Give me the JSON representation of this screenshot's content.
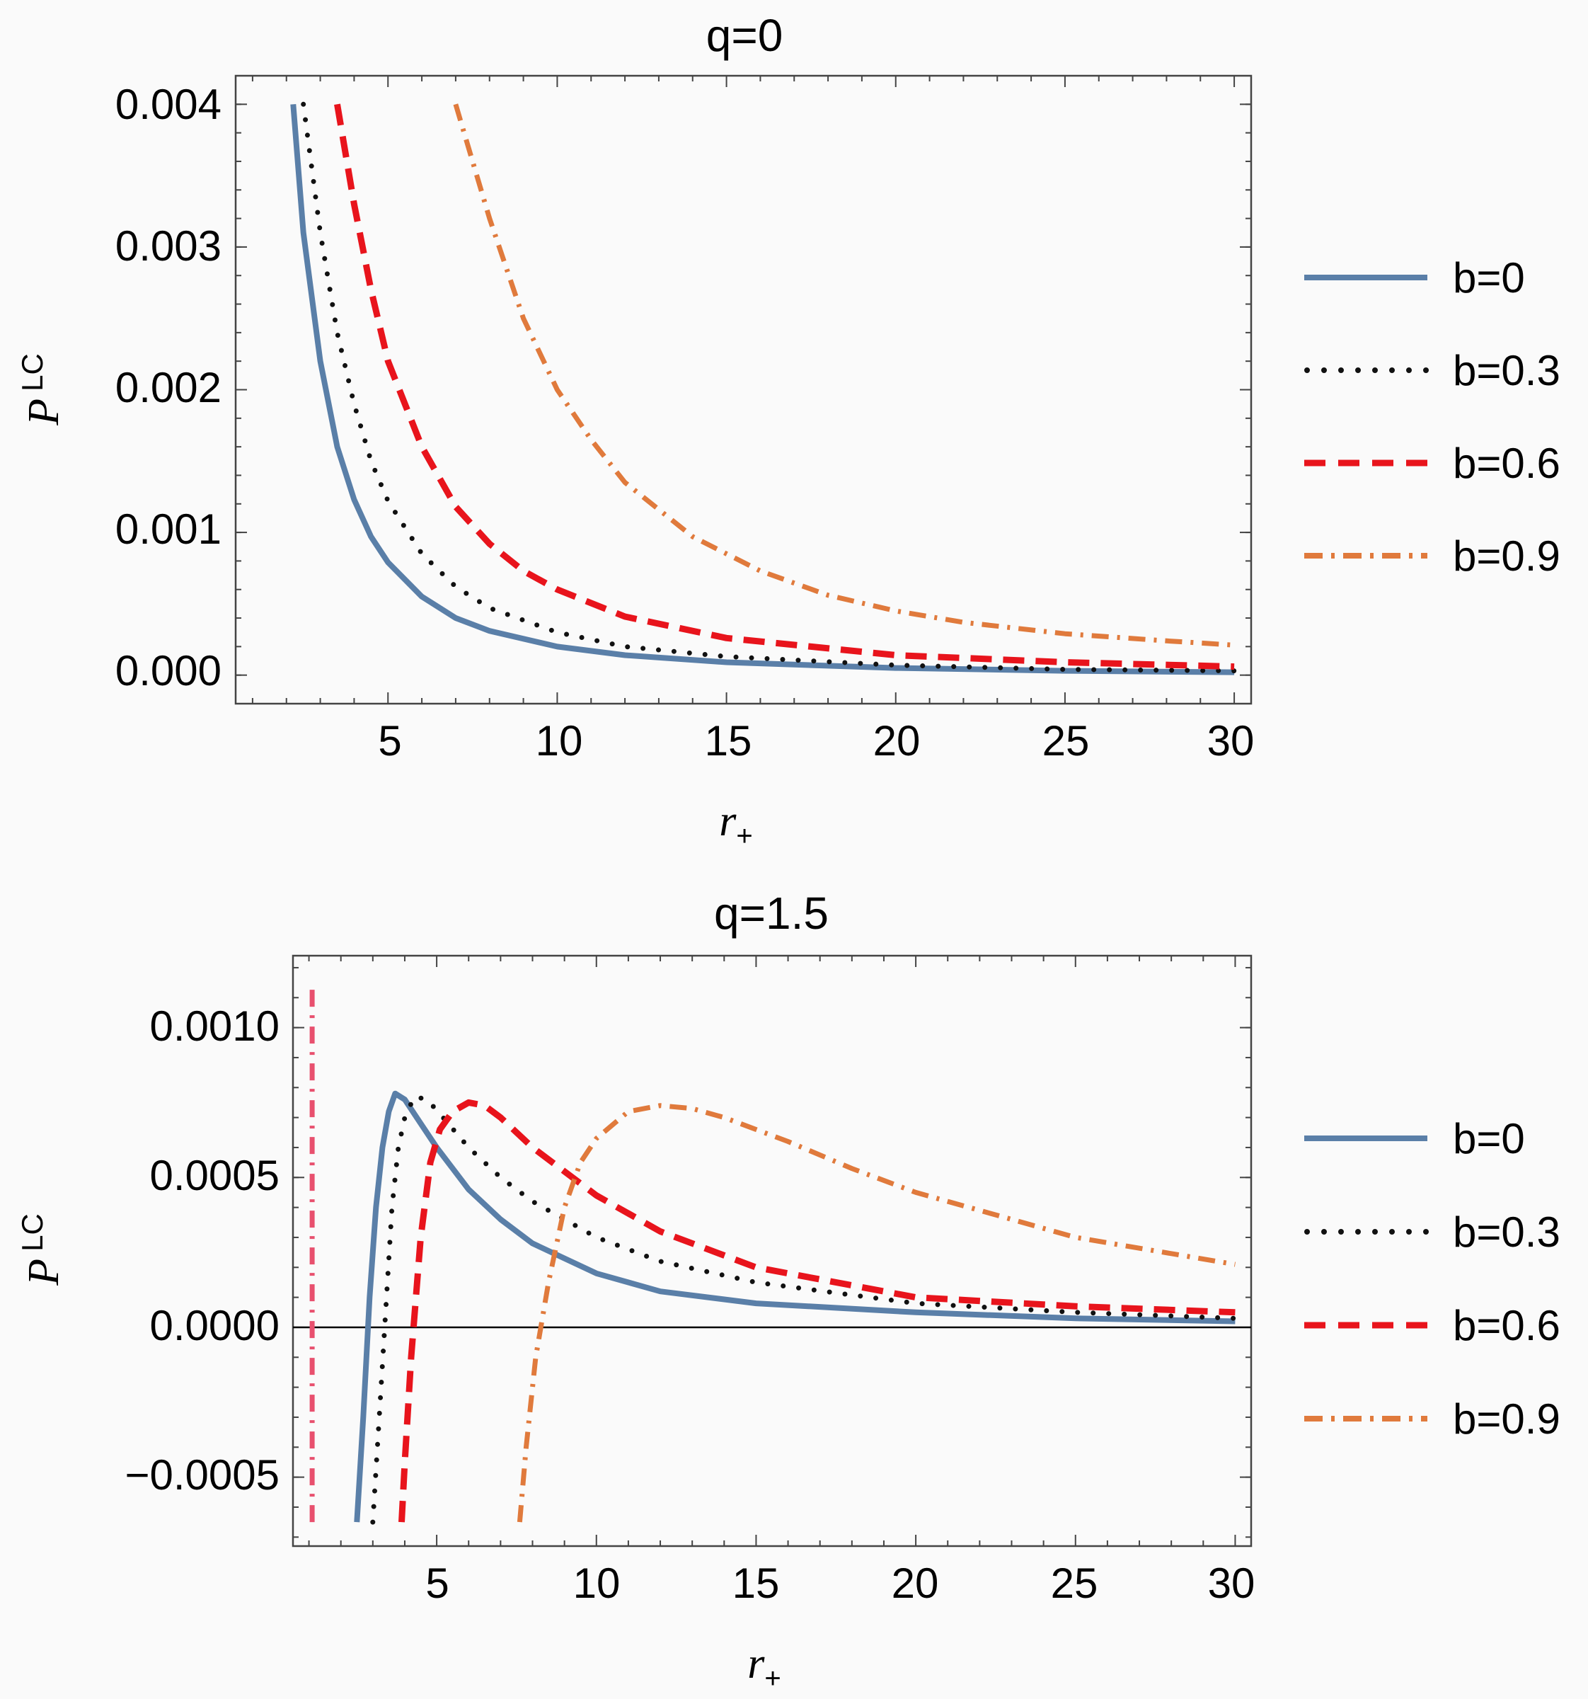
{
  "colors": {
    "b0": "#5a7fa8",
    "b03": "#111111",
    "b06": "#e8141c",
    "b09": "#e07a3c",
    "b09_alt": "#e8506e"
  },
  "chart_data": [
    {
      "type": "line",
      "title": "q=0",
      "xlabel": "r",
      "xlabel_sub": "+",
      "ylabel": "P",
      "ylabel_sup": "LC",
      "xlim": [
        0.5,
        30.5
      ],
      "ylim": [
        -0.0002,
        0.0042
      ],
      "xticks": [
        5,
        10,
        15,
        20,
        25,
        30
      ],
      "xtick_labels": [
        "5",
        "10",
        "15",
        "20",
        "25",
        "30"
      ],
      "yticks": [
        0,
        0.001,
        0.002,
        0.003,
        0.004
      ],
      "ytick_labels": [
        "0.000",
        "0.001",
        "0.002",
        "0.003",
        "0.004"
      ],
      "zero_line": false,
      "legend": [
        "b=0",
        "b=0.3",
        "b=0.6",
        "b=0.9"
      ],
      "series": [
        {
          "name": "b=0",
          "style": "solid",
          "color_key": "b0",
          "x": [
            2.2,
            2.5,
            3,
            3.5,
            4,
            4.5,
            5,
            6,
            7,
            8,
            10,
            12,
            15,
            20,
            25,
            30
          ],
          "y": [
            0.004,
            0.0031,
            0.0022,
            0.0016,
            0.00123,
            0.00097,
            0.00079,
            0.00055,
            0.0004,
            0.00031,
            0.0002,
            0.00014,
            9e-05,
            5e-05,
            3e-05,
            2e-05
          ]
        },
        {
          "name": "b=0.3",
          "style": "dotted",
          "color_key": "b03",
          "x": [
            2.5,
            3,
            3.5,
            4,
            4.5,
            5,
            6,
            7,
            8,
            10,
            12,
            15,
            20,
            25,
            30
          ],
          "y": [
            0.004,
            0.0031,
            0.0024,
            0.0019,
            0.0015,
            0.00122,
            0.00085,
            0.00062,
            0.00047,
            0.0003,
            0.0002,
            0.00013,
            7e-05,
            4e-05,
            3e-05
          ]
        },
        {
          "name": "b=0.6",
          "style": "dashed",
          "color_key": "b06",
          "x": [
            3.5,
            4,
            4.5,
            5,
            6,
            7,
            8,
            9,
            10,
            12,
            15,
            20,
            25,
            30
          ],
          "y": [
            0.004,
            0.0033,
            0.0027,
            0.0022,
            0.0016,
            0.00118,
            0.00092,
            0.00073,
            0.0006,
            0.00041,
            0.00026,
            0.00014,
            9e-05,
            6e-05
          ]
        },
        {
          "name": "b=0.9",
          "style": "dashdot",
          "color_key": "b09",
          "x": [
            7,
            7.5,
            8,
            9,
            10,
            11,
            12,
            14,
            16,
            18,
            20,
            22,
            25,
            28,
            30
          ],
          "y": [
            0.004,
            0.0036,
            0.0032,
            0.0025,
            0.002,
            0.00165,
            0.00135,
            0.00097,
            0.00073,
            0.00056,
            0.00045,
            0.00037,
            0.00029,
            0.00024,
            0.00021
          ]
        }
      ]
    },
    {
      "type": "line",
      "title": "q=1.5",
      "xlabel": "r",
      "xlabel_sub": "+",
      "ylabel": "P",
      "ylabel_sup": "LC",
      "xlim": [
        0.5,
        30.5
      ],
      "ylim": [
        -0.00073,
        0.00124
      ],
      "xticks": [
        5,
        10,
        15,
        20,
        25,
        30
      ],
      "xtick_labels": [
        "5",
        "10",
        "15",
        "20",
        "25",
        "30"
      ],
      "yticks": [
        -0.0005,
        0,
        0.0005,
        0.001
      ],
      "ytick_labels": [
        "−0.0005",
        "0.0000",
        "0.0005",
        "0.0010"
      ],
      "zero_line": true,
      "legend": [
        "b=0",
        "b=0.3",
        "b=0.6",
        "b=0.9"
      ],
      "series": [
        {
          "name": "b=0",
          "style": "solid",
          "color_key": "b0",
          "x": [
            2.5,
            2.7,
            2.9,
            3.1,
            3.3,
            3.5,
            3.7,
            4.0,
            4.5,
            5,
            6,
            7,
            8,
            10,
            12,
            15,
            20,
            25,
            30
          ],
          "y": [
            -0.00065,
            -0.0003,
            0.0001,
            0.0004,
            0.0006,
            0.00072,
            0.00078,
            0.00076,
            0.00068,
            0.0006,
            0.00046,
            0.00036,
            0.00028,
            0.00018,
            0.00012,
            8e-05,
            5e-05,
            3e-05,
            2e-05
          ]
        },
        {
          "name": "b=0.3",
          "style": "dotted",
          "color_key": "b03",
          "x": [
            3.0,
            3.2,
            3.4,
            3.6,
            3.8,
            4.0,
            4.3,
            4.7,
            5.2,
            6,
            7,
            8,
            10,
            12,
            15,
            20,
            25,
            30
          ],
          "y": [
            -0.00065,
            -0.0003,
            5e-05,
            0.0004,
            0.0006,
            0.0007,
            0.00077,
            0.00076,
            0.0007,
            0.0006,
            0.0005,
            0.00042,
            0.0003,
            0.00022,
            0.00015,
            8e-05,
            5e-05,
            3e-05
          ]
        },
        {
          "name": "b=0.6",
          "style": "dashed",
          "color_key": "b06",
          "x": [
            3.9,
            4.0,
            4.2,
            4.5,
            4.8,
            5.1,
            5.5,
            6.0,
            6.5,
            7,
            8,
            10,
            12,
            15,
            20,
            25,
            30
          ],
          "y": [
            -0.00065,
            -0.00045,
            -0.0001,
            0.0003,
            0.00055,
            0.00066,
            0.00072,
            0.00075,
            0.00074,
            0.0007,
            0.0006,
            0.00044,
            0.00032,
            0.0002,
            0.0001,
            7e-05,
            5e-05
          ]
        },
        {
          "name": "b=0.9",
          "style": "dashdot",
          "color_key": "b09",
          "x": [
            7.6,
            7.8,
            8.1,
            8.5,
            9,
            9.5,
            10,
            11,
            12,
            13,
            14,
            16,
            18,
            20,
            25,
            30
          ],
          "y": [
            -0.00065,
            -0.0004,
            -0.0001,
            0.00015,
            0.0004,
            0.00055,
            0.00063,
            0.00072,
            0.00074,
            0.00073,
            0.0007,
            0.00062,
            0.00053,
            0.00045,
            0.0003,
            0.00021
          ]
        },
        {
          "name": "b=0.9",
          "style": "dashdot",
          "color_key": "b09_alt",
          "legend": false,
          "x": [
            1.1,
            1.1
          ],
          "y": [
            -0.00065,
            0.00115
          ]
        }
      ]
    }
  ]
}
